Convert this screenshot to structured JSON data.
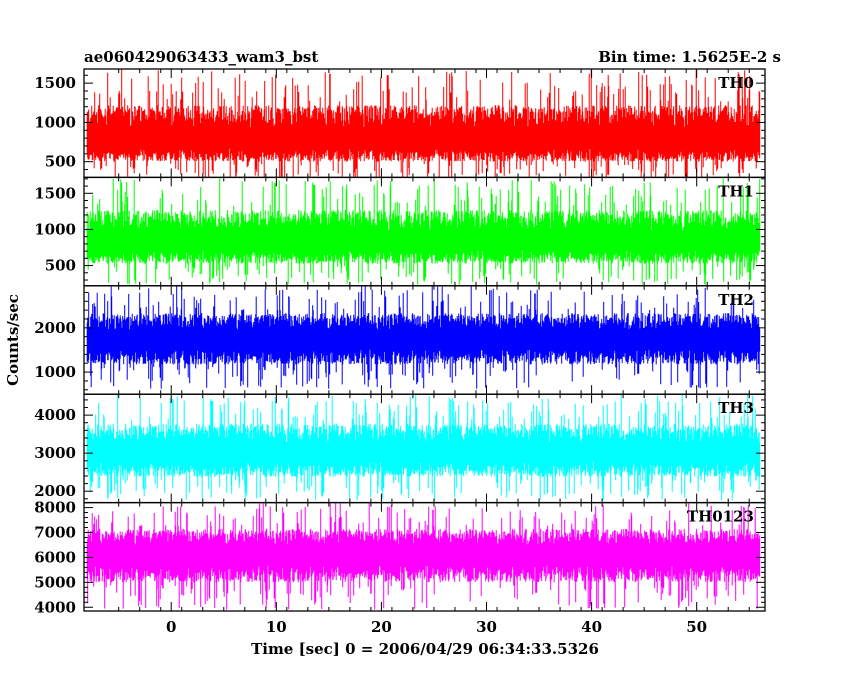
{
  "header": {
    "left_title": "ae060429063433_wam3_bst",
    "right_title": "Bin time: 1.5625E-2 s"
  },
  "chart_data": {
    "type": "line",
    "title": "ae060429063433_wam3_bst",
    "subtitle": "Bin time: 1.5625E-2 s",
    "xlabel": "Time [sec] 0 = 2006/04/29 06:34:33.5326",
    "ylabel": "Counts/sec",
    "xlim": [
      -8.3,
      56.5
    ],
    "x_data_range": [
      -8.0,
      56.0
    ],
    "xticks": [
      0,
      10,
      20,
      30,
      40,
      50
    ],
    "grid": false,
    "panels": [
      {
        "name": "TH0",
        "color": "#ff0000",
        "ylim": [
          300,
          1680
        ],
        "yticks": [
          500,
          1000,
          1500
        ],
        "mean": 760,
        "noise_min": 240,
        "noise_max": 1680
      },
      {
        "name": "TH1",
        "color": "#00ff00",
        "ylim": [
          220,
          1720
        ],
        "yticks": [
          500,
          1000,
          1500
        ],
        "mean": 820,
        "noise_min": 230,
        "noise_max": 1720
      },
      {
        "name": "TH2",
        "color": "#0000ff",
        "ylim": [
          500,
          2950
        ],
        "yticks": [
          1000,
          2000
        ],
        "mean": 1720,
        "noise_min": 620,
        "noise_max": 2950
      },
      {
        "name": "TH3",
        "color": "#00ffff",
        "ylim": [
          1700,
          4550
        ],
        "yticks": [
          2000,
          3000,
          4000
        ],
        "mean": 3000,
        "noise_min": 1750,
        "noise_max": 4550
      },
      {
        "name": "TH0123",
        "color": "#ff00ff",
        "ylim": [
          3850,
          8200
        ],
        "yticks": [
          4000,
          5000,
          6000,
          7000,
          8000
        ],
        "mean": 6100,
        "noise_min": 3900,
        "noise_max": 8200
      }
    ]
  }
}
